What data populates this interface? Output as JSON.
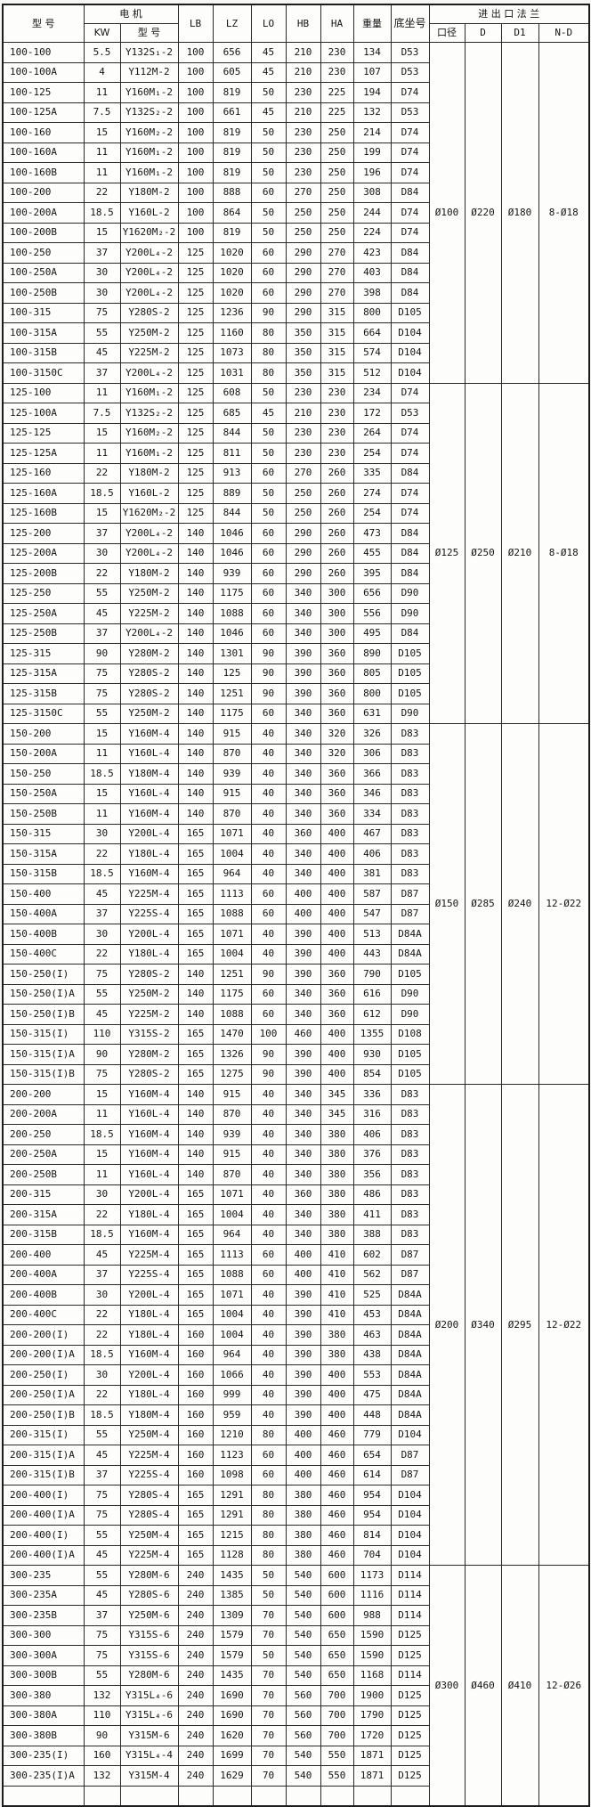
{
  "table": {
    "header": {
      "model": "型 号",
      "motor": "电 机",
      "motor_kw": "KW",
      "motor_model": "型 号",
      "lb": "LB",
      "lz": "LZ",
      "lo": "LO",
      "hb": "HB",
      "ha": "HA",
      "weight": "重量",
      "base": "底坐号",
      "flange": "进 出 口 法 兰",
      "bore": "口径",
      "d": "D",
      "d1": "D1",
      "nd": "N-D"
    },
    "rows": [
      [
        "100-100",
        "5.5",
        "Y132S₁-2",
        "100",
        "656",
        "45",
        "210",
        "230",
        "134",
        "D53"
      ],
      [
        "100-100A",
        "4",
        "Y112M-2",
        "100",
        "605",
        "45",
        "210",
        "230",
        "107",
        "D53"
      ],
      [
        "100-125",
        "11",
        "Y160M₁-2",
        "100",
        "819",
        "50",
        "230",
        "225",
        "194",
        "D74"
      ],
      [
        "100-125A",
        "7.5",
        "Y132S₂-2",
        "100",
        "661",
        "45",
        "210",
        "225",
        "132",
        "D53"
      ],
      [
        "100-160",
        "15",
        "Y160M₂-2",
        "100",
        "819",
        "50",
        "230",
        "250",
        "214",
        "D74"
      ],
      [
        "100-160A",
        "11",
        "Y160M₁-2",
        "100",
        "819",
        "50",
        "230",
        "250",
        "199",
        "D74"
      ],
      [
        "100-160B",
        "11",
        "Y160M₁-2",
        "100",
        "819",
        "50",
        "230",
        "250",
        "196",
        "D74"
      ],
      [
        "100-200",
        "22",
        "Y180M-2",
        "100",
        "888",
        "60",
        "270",
        "250",
        "308",
        "D84"
      ],
      [
        "100-200A",
        "18.5",
        "Y160L-2",
        "100",
        "864",
        "50",
        "250",
        "250",
        "244",
        "D74"
      ],
      [
        "100-200B",
        "15",
        "Y1620M₂-2",
        "100",
        "819",
        "50",
        "250",
        "250",
        "224",
        "D74"
      ],
      [
        "100-250",
        "37",
        "Y200L₄-2",
        "125",
        "1020",
        "60",
        "290",
        "270",
        "423",
        "D84"
      ],
      [
        "100-250A",
        "30",
        "Y200L₄-2",
        "125",
        "1020",
        "60",
        "290",
        "270",
        "403",
        "D84"
      ],
      [
        "100-250B",
        "30",
        "Y200L₄-2",
        "125",
        "1020",
        "60",
        "290",
        "270",
        "398",
        "D84"
      ],
      [
        "100-315",
        "75",
        "Y280S-2",
        "125",
        "1236",
        "90",
        "290",
        "315",
        "800",
        "D105"
      ],
      [
        "100-315A",
        "55",
        "Y250M-2",
        "125",
        "1160",
        "80",
        "350",
        "315",
        "664",
        "D104"
      ],
      [
        "100-315B",
        "45",
        "Y225M-2",
        "125",
        "1073",
        "80",
        "350",
        "315",
        "574",
        "D104"
      ],
      [
        "100-3150C",
        "37",
        "Y200L₄-2",
        "125",
        "1031",
        "80",
        "350",
        "315",
        "512",
        "D104"
      ],
      [
        "125-100",
        "11",
        "Y160M₁-2",
        "125",
        "608",
        "50",
        "230",
        "230",
        "234",
        "D74"
      ],
      [
        "125-100A",
        "7.5",
        "Y132S₂-2",
        "125",
        "685",
        "45",
        "210",
        "230",
        "172",
        "D53"
      ],
      [
        "125-125",
        "15",
        "Y160M₂-2",
        "125",
        "844",
        "50",
        "230",
        "230",
        "264",
        "D74"
      ],
      [
        "125-125A",
        "11",
        "Y160M₁-2",
        "125",
        "811",
        "50",
        "230",
        "230",
        "254",
        "D74"
      ],
      [
        "125-160",
        "22",
        "Y180M-2",
        "125",
        "913",
        "60",
        "270",
        "260",
        "335",
        "D84"
      ],
      [
        "125-160A",
        "18.5",
        "Y160L-2",
        "125",
        "889",
        "50",
        "250",
        "260",
        "274",
        "D74"
      ],
      [
        "125-160B",
        "15",
        "Y1620M₂-2",
        "125",
        "844",
        "50",
        "250",
        "260",
        "254",
        "D74"
      ],
      [
        "125-200",
        "37",
        "Y200L₄-2",
        "140",
        "1046",
        "60",
        "290",
        "260",
        "473",
        "D84"
      ],
      [
        "125-200A",
        "30",
        "Y200L₄-2",
        "140",
        "1046",
        "60",
        "290",
        "260",
        "455",
        "D84"
      ],
      [
        "125-200B",
        "22",
        "Y180M-2",
        "140",
        "939",
        "60",
        "290",
        "260",
        "395",
        "D84"
      ],
      [
        "125-250",
        "55",
        "Y250M-2",
        "140",
        "1175",
        "60",
        "340",
        "300",
        "656",
        "D90"
      ],
      [
        "125-250A",
        "45",
        "Y225M-2",
        "140",
        "1088",
        "60",
        "340",
        "300",
        "556",
        "D90"
      ],
      [
        "125-250B",
        "37",
        "Y200L₄-2",
        "140",
        "1046",
        "60",
        "340",
        "300",
        "495",
        "D84"
      ],
      [
        "125-315",
        "90",
        "Y280M-2",
        "140",
        "1301",
        "90",
        "390",
        "360",
        "890",
        "D105"
      ],
      [
        "125-315A",
        "75",
        "Y280S-2",
        "140",
        "125",
        "90",
        "390",
        "360",
        "805",
        "D105"
      ],
      [
        "125-315B",
        "75",
        "Y280S-2",
        "140",
        "1251",
        "90",
        "390",
        "360",
        "800",
        "D105"
      ],
      [
        "125-3150C",
        "55",
        "Y250M-2",
        "140",
        "1175",
        "60",
        "340",
        "360",
        "631",
        "D90"
      ],
      [
        "150-200",
        "15",
        "Y160M-4",
        "140",
        "915",
        "40",
        "340",
        "320",
        "326",
        "D83"
      ],
      [
        "150-200A",
        "11",
        "Y160L-4",
        "140",
        "870",
        "40",
        "340",
        "320",
        "306",
        "D83"
      ],
      [
        "150-250",
        "18.5",
        "Y180M-4",
        "140",
        "939",
        "40",
        "340",
        "360",
        "366",
        "D83"
      ],
      [
        "150-250A",
        "15",
        "Y160L-4",
        "140",
        "915",
        "40",
        "340",
        "360",
        "346",
        "D83"
      ],
      [
        "150-250B",
        "11",
        "Y160M-4",
        "140",
        "870",
        "40",
        "340",
        "360",
        "334",
        "D83"
      ],
      [
        "150-315",
        "30",
        "Y200L-4",
        "165",
        "1071",
        "40",
        "360",
        "400",
        "467",
        "D83"
      ],
      [
        "150-315A",
        "22",
        "Y180L-4",
        "165",
        "1004",
        "40",
        "340",
        "400",
        "406",
        "D83"
      ],
      [
        "150-315B",
        "18.5",
        "Y160M-4",
        "165",
        "964",
        "40",
        "340",
        "400",
        "381",
        "D83"
      ],
      [
        "150-400",
        "45",
        "Y225M-4",
        "165",
        "1113",
        "60",
        "400",
        "400",
        "587",
        "D87"
      ],
      [
        "150-400A",
        "37",
        "Y225S-4",
        "165",
        "1088",
        "60",
        "400",
        "400",
        "547",
        "D87"
      ],
      [
        "150-400B",
        "30",
        "Y200L-4",
        "165",
        "1071",
        "40",
        "390",
        "400",
        "513",
        "D84A"
      ],
      [
        "150-400C",
        "22",
        "Y180L-4",
        "165",
        "1004",
        "40",
        "390",
        "400",
        "443",
        "D84A"
      ],
      [
        "150-250(I)",
        "75",
        "Y280S-2",
        "140",
        "1251",
        "90",
        "390",
        "360",
        "790",
        "D105"
      ],
      [
        "150-250(I)A",
        "55",
        "Y250M-2",
        "140",
        "1175",
        "60",
        "340",
        "360",
        "616",
        "D90"
      ],
      [
        "150-250(I)B",
        "45",
        "Y225M-2",
        "140",
        "1088",
        "60",
        "340",
        "360",
        "612",
        "D90"
      ],
      [
        "150-315(I)",
        "110",
        "Y315S-2",
        "165",
        "1470",
        "100",
        "460",
        "400",
        "1355",
        "D108"
      ],
      [
        "150-315(I)A",
        "90",
        "Y280M-2",
        "165",
        "1326",
        "90",
        "390",
        "400",
        "930",
        "D105"
      ],
      [
        "150-315(I)B",
        "75",
        "Y280S-2",
        "165",
        "1275",
        "90",
        "390",
        "400",
        "854",
        "D105"
      ],
      [
        "200-200",
        "15",
        "Y160M-4",
        "140",
        "915",
        "40",
        "340",
        "345",
        "336",
        "D83"
      ],
      [
        "200-200A",
        "11",
        "Y160L-4",
        "140",
        "870",
        "40",
        "340",
        "345",
        "316",
        "D83"
      ],
      [
        "200-250",
        "18.5",
        "Y160M-4",
        "140",
        "939",
        "40",
        "340",
        "380",
        "406",
        "D83"
      ],
      [
        "200-250A",
        "15",
        "Y160M-4",
        "140",
        "915",
        "40",
        "340",
        "380",
        "376",
        "D83"
      ],
      [
        "200-250B",
        "11",
        "Y160L-4",
        "140",
        "870",
        "40",
        "340",
        "380",
        "356",
        "D83"
      ],
      [
        "200-315",
        "30",
        "Y200L-4",
        "165",
        "1071",
        "40",
        "360",
        "380",
        "486",
        "D83"
      ],
      [
        "200-315A",
        "22",
        "Y180L-4",
        "165",
        "1004",
        "40",
        "340",
        "380",
        "411",
        "D83"
      ],
      [
        "200-315B",
        "18.5",
        "Y160M-4",
        "165",
        "964",
        "40",
        "340",
        "380",
        "388",
        "D83"
      ],
      [
        "200-400",
        "45",
        "Y225M-4",
        "165",
        "1113",
        "60",
        "400",
        "410",
        "602",
        "D87"
      ],
      [
        "200-400A",
        "37",
        "Y225S-4",
        "165",
        "1088",
        "60",
        "400",
        "410",
        "562",
        "D87"
      ],
      [
        "200-400B",
        "30",
        "Y200L-4",
        "165",
        "1071",
        "40",
        "390",
        "410",
        "525",
        "D84A"
      ],
      [
        "200-400C",
        "22",
        "Y180L-4",
        "165",
        "1004",
        "40",
        "390",
        "410",
        "453",
        "D84A"
      ],
      [
        "200-200(I)",
        "22",
        "Y180L-4",
        "160",
        "1004",
        "40",
        "390",
        "380",
        "463",
        "D84A"
      ],
      [
        "200-200(I)A",
        "18.5",
        "Y160M-4",
        "160",
        "964",
        "40",
        "390",
        "380",
        "438",
        "D84A"
      ],
      [
        "200-250(I)",
        "30",
        "Y200L-4",
        "160",
        "1066",
        "40",
        "390",
        "400",
        "553",
        "D84A"
      ],
      [
        "200-250(I)A",
        "22",
        "Y180L-4",
        "160",
        "999",
        "40",
        "390",
        "400",
        "475",
        "D84A"
      ],
      [
        "200-250(I)B",
        "18.5",
        "Y180M-4",
        "160",
        "959",
        "40",
        "390",
        "400",
        "448",
        "D84A"
      ],
      [
        "200-315(I)",
        "55",
        "Y250M-4",
        "160",
        "1210",
        "80",
        "400",
        "460",
        "779",
        "D104"
      ],
      [
        "200-315(I)A",
        "45",
        "Y225M-4",
        "160",
        "1123",
        "60",
        "400",
        "460",
        "654",
        "D87"
      ],
      [
        "200-315(I)B",
        "37",
        "Y225S-4",
        "160",
        "1098",
        "60",
        "400",
        "460",
        "614",
        "D87"
      ],
      [
        "200-400(I)",
        "75",
        "Y280S-4",
        "165",
        "1291",
        "80",
        "380",
        "460",
        "954",
        "D104"
      ],
      [
        "200-400(I)A",
        "75",
        "Y280S-4",
        "165",
        "1291",
        "80",
        "380",
        "460",
        "954",
        "D104"
      ],
      [
        "200-400(I)",
        "55",
        "Y250M-4",
        "165",
        "1215",
        "80",
        "380",
        "460",
        "814",
        "D104"
      ],
      [
        "200-400(I)A",
        "45",
        "Y225M-4",
        "165",
        "1128",
        "80",
        "380",
        "460",
        "704",
        "D104"
      ],
      [
        "300-235",
        "55",
        "Y280M-6",
        "240",
        "1435",
        "50",
        "540",
        "600",
        "1173",
        "D114"
      ],
      [
        "300-235A",
        "45",
        "Y280S-6",
        "240",
        "1385",
        "50",
        "540",
        "600",
        "1116",
        "D114"
      ],
      [
        "300-235B",
        "37",
        "Y250M-6",
        "240",
        "1309",
        "70",
        "540",
        "600",
        "988",
        "D114"
      ],
      [
        "300-300",
        "75",
        "Y315S-6",
        "240",
        "1579",
        "70",
        "540",
        "650",
        "1590",
        "D125"
      ],
      [
        "300-300A",
        "75",
        "Y315S-6",
        "240",
        "1579",
        "50",
        "540",
        "650",
        "1590",
        "D125"
      ],
      [
        "300-300B",
        "55",
        "Y280M-6",
        "240",
        "1435",
        "70",
        "540",
        "650",
        "1168",
        "D114"
      ],
      [
        "300-380",
        "132",
        "Y315L₄-6",
        "240",
        "1690",
        "70",
        "560",
        "700",
        "1900",
        "D125"
      ],
      [
        "300-380A",
        "110",
        "Y315L₄-6",
        "240",
        "1690",
        "70",
        "560",
        "700",
        "1790",
        "D125"
      ],
      [
        "300-380B",
        "90",
        "Y315M-6",
        "240",
        "1620",
        "70",
        "560",
        "700",
        "1720",
        "D125"
      ],
      [
        "300-235(I)",
        "160",
        "Y315L₄-4",
        "240",
        "1699",
        "70",
        "540",
        "550",
        "1871",
        "D125"
      ],
      [
        "300-235(I)A",
        "132",
        "Y315M-4",
        "240",
        "1629",
        "70",
        "540",
        "550",
        "1871",
        "D125"
      ],
      [
        "",
        "",
        "",
        "",
        "",
        "",
        "",
        "",
        "",
        ""
      ]
    ],
    "flange_groups": [
      {
        "rows": 17,
        "bore": "Ø100",
        "d": "Ø220",
        "d1": "Ø180",
        "nd": "8-Ø18"
      },
      {
        "rows": 17,
        "bore": "Ø125",
        "d": "Ø250",
        "d1": "Ø210",
        "nd": "8-Ø18"
      },
      {
        "rows": 18,
        "bore": "Ø150",
        "d": "Ø285",
        "d1": "Ø240",
        "nd": "12-Ø22"
      },
      {
        "rows": 24,
        "bore": "Ø200",
        "d": "Ø340",
        "d1": "Ø295",
        "nd": "12-Ø22"
      },
      {
        "rows": 12,
        "bore": "Ø300",
        "d": "Ø460",
        "d1": "Ø410",
        "nd": "12-Ø26"
      }
    ]
  }
}
